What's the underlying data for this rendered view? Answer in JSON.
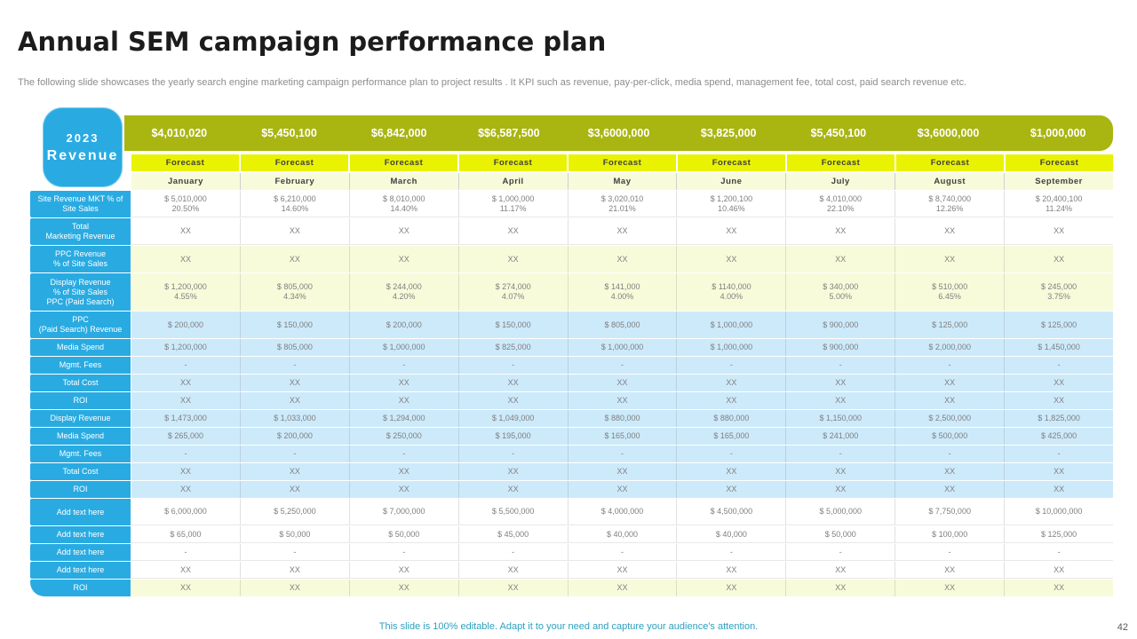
{
  "slide": {
    "title": "Annual SEM campaign performance plan",
    "subtitle": "The following slide showcases the yearly search engine marketing campaign performance plan to project results . It KPI such as revenue, pay-per-click, media spend, management fee, total cost, paid search revenue etc.",
    "footer": "This slide is 100% editable. Adapt it to your need and capture your audience's attention.",
    "page_number": "42"
  },
  "colors": {
    "olive_header": "#a9b511",
    "forecast_yellow": "#e9f201",
    "pale_yellow": "#f8fbda",
    "light_blue": "#cdeafb",
    "label_blue": "#29abe2",
    "footer_teal": "#2da0bf"
  },
  "table": {
    "year_badge": {
      "year": "2023",
      "label": "Revenue"
    },
    "totals": [
      "$4,010,020",
      "$5,450,100",
      "$6,842,000",
      "$$6,587,500",
      "$3,6000,000",
      "$3,825,000",
      "$5,450,100",
      "$3,6000,000",
      "$1,000,000"
    ],
    "forecast_labels": [
      "Forecast",
      "Forecast",
      "Forecast",
      "Forecast",
      "Forecast",
      "Forecast",
      "Forecast",
      "Forecast",
      "Forecast"
    ],
    "months": [
      "January",
      "February",
      "March",
      "April",
      "May",
      "June",
      "July",
      "August",
      "September"
    ],
    "rows": [
      {
        "label": "Site Revenue MKT % of\nSite Sales",
        "bg": "white",
        "cells": [
          [
            "$ 5,010,000",
            "20.50%"
          ],
          [
            "$ 6,210,000",
            "14.60%"
          ],
          [
            "$ 8,010,000",
            "14.40%"
          ],
          [
            "$ 1,000,000",
            "11.17%"
          ],
          [
            "$ 3,020,010",
            "21.01%"
          ],
          [
            "$ 1,200,100",
            "10.46%"
          ],
          [
            "$ 4,010,000",
            "22.10%"
          ],
          [
            "$ 8,740,000",
            "12.26%"
          ],
          [
            "$ 20,400,100",
            "11.24%"
          ]
        ]
      },
      {
        "label": "Total\nMarketing Revenue",
        "bg": "white",
        "cells": [
          "XX",
          "XX",
          "XX",
          "XX",
          "XX",
          "XX",
          "XX",
          "XX",
          "XX"
        ]
      },
      {
        "label": "PPC Revenue\n% of Site Sales",
        "bg": "yellow",
        "cells": [
          "XX",
          "XX",
          "XX",
          "XX",
          "XX",
          "XX",
          "XX",
          "XX",
          "XX"
        ]
      },
      {
        "label": "Display Revenue\n% of Site Sales\nPPC (Paid Search)",
        "bg": "yellow",
        "cells": [
          [
            "$ 1,200,000",
            "4.55%"
          ],
          [
            "$ 805,000",
            "4.34%"
          ],
          [
            "$ 244,000",
            "4.20%"
          ],
          [
            "$ 274,000",
            "4.07%"
          ],
          [
            "$ 141,000",
            "4.00%"
          ],
          [
            "$ 1140,000",
            "4.00%"
          ],
          [
            "$ 340,000",
            "5.00%"
          ],
          [
            "$ 510,000",
            "6.45%"
          ],
          [
            "$ 245,000",
            "3.75%"
          ]
        ]
      },
      {
        "label": "PPC\n(Paid Search) Revenue",
        "bg": "blue",
        "cells": [
          "$ 200,000",
          "$ 150,000",
          "$ 200,000",
          "$ 150,000",
          "$ 805,000",
          "$ 1,000,000",
          "$ 900,000",
          "$ 125,000",
          "$ 125,000"
        ]
      },
      {
        "label": "Media Spend",
        "bg": "blue",
        "cells": [
          "$ 1,200,000",
          "$ 805,000",
          "$ 1,000,000",
          "$ 825,000",
          "$ 1,000,000",
          "$ 1,000,000",
          "$ 900,000",
          "$ 2,000,000",
          "$ 1,450,000"
        ]
      },
      {
        "label": "Mgmt. Fees",
        "bg": "blue",
        "cells": [
          "-",
          "-",
          "-",
          "-",
          "-",
          "-",
          "-",
          "-",
          "-"
        ]
      },
      {
        "label": "Total Cost",
        "bg": "blue",
        "cells": [
          "XX",
          "XX",
          "XX",
          "XX",
          "XX",
          "XX",
          "XX",
          "XX",
          "XX"
        ]
      },
      {
        "label": "ROI",
        "bg": "blue",
        "cells": [
          "XX",
          "XX",
          "XX",
          "XX",
          "XX",
          "XX",
          "XX",
          "XX",
          "XX"
        ]
      },
      {
        "label": "Display Revenue",
        "bg": "blue",
        "cells": [
          "$ 1,473,000",
          "$ 1,033,000",
          "$ 1,294,000",
          "$ 1,049,000",
          "$ 880,000",
          "$ 880,000",
          "$ 1,150,000",
          "$ 2,500,000",
          "$ 1,825,000"
        ]
      },
      {
        "label": "Media Spend",
        "bg": "blue",
        "cells": [
          "$ 265,000",
          "$ 200,000",
          "$ 250,000",
          "$ 195,000",
          "$ 165,000",
          "$ 165,000",
          "$ 241,000",
          "$ 500,000",
          "$ 425,000"
        ]
      },
      {
        "label": "Mgmt. Fees",
        "bg": "blue",
        "cells": [
          "-",
          "-",
          "-",
          "-",
          "-",
          "-",
          "-",
          "-",
          "-"
        ]
      },
      {
        "label": "Total Cost",
        "bg": "blue",
        "cells": [
          "XX",
          "XX",
          "XX",
          "XX",
          "XX",
          "XX",
          "XX",
          "XX",
          "XX"
        ]
      },
      {
        "label": "ROI",
        "bg": "blue",
        "cells": [
          "XX",
          "XX",
          "XX",
          "XX",
          "XX",
          "XX",
          "XX",
          "XX",
          "XX"
        ]
      },
      {
        "label": "Add text here",
        "bg": "white",
        "cells": [
          "$ 6,000,000",
          "$ 5,250,000",
          "$ 7,000,000",
          "$ 5,500,000",
          "$ 4,000,000",
          "$ 4,500,000",
          [
            "$ 5,000,000",
            ""
          ],
          "$ 7,750,000",
          "$ 10,000,000"
        ]
      },
      {
        "label": "Add text here",
        "bg": "white",
        "cells": [
          "$ 65,000",
          "$ 50,000",
          "$ 50,000",
          "$ 45,000",
          "$ 40,000",
          "$ 40,000",
          "$ 50,000",
          "$ 100,000",
          "$ 125,000"
        ]
      },
      {
        "label": "Add text here",
        "bg": "white",
        "cells": [
          "-",
          "-",
          "-",
          "-",
          "-",
          "-",
          "-",
          "-",
          "-"
        ]
      },
      {
        "label": "Add text here",
        "bg": "white",
        "cells": [
          "XX",
          "XX",
          "XX",
          "XX",
          "XX",
          "XX",
          "XX",
          "XX",
          "XX"
        ]
      },
      {
        "label": "ROI",
        "bg": "yellow",
        "cells": [
          "XX",
          "XX",
          "XX",
          "XX",
          "XX",
          "XX",
          "XX",
          "XX",
          "XX"
        ]
      }
    ]
  }
}
